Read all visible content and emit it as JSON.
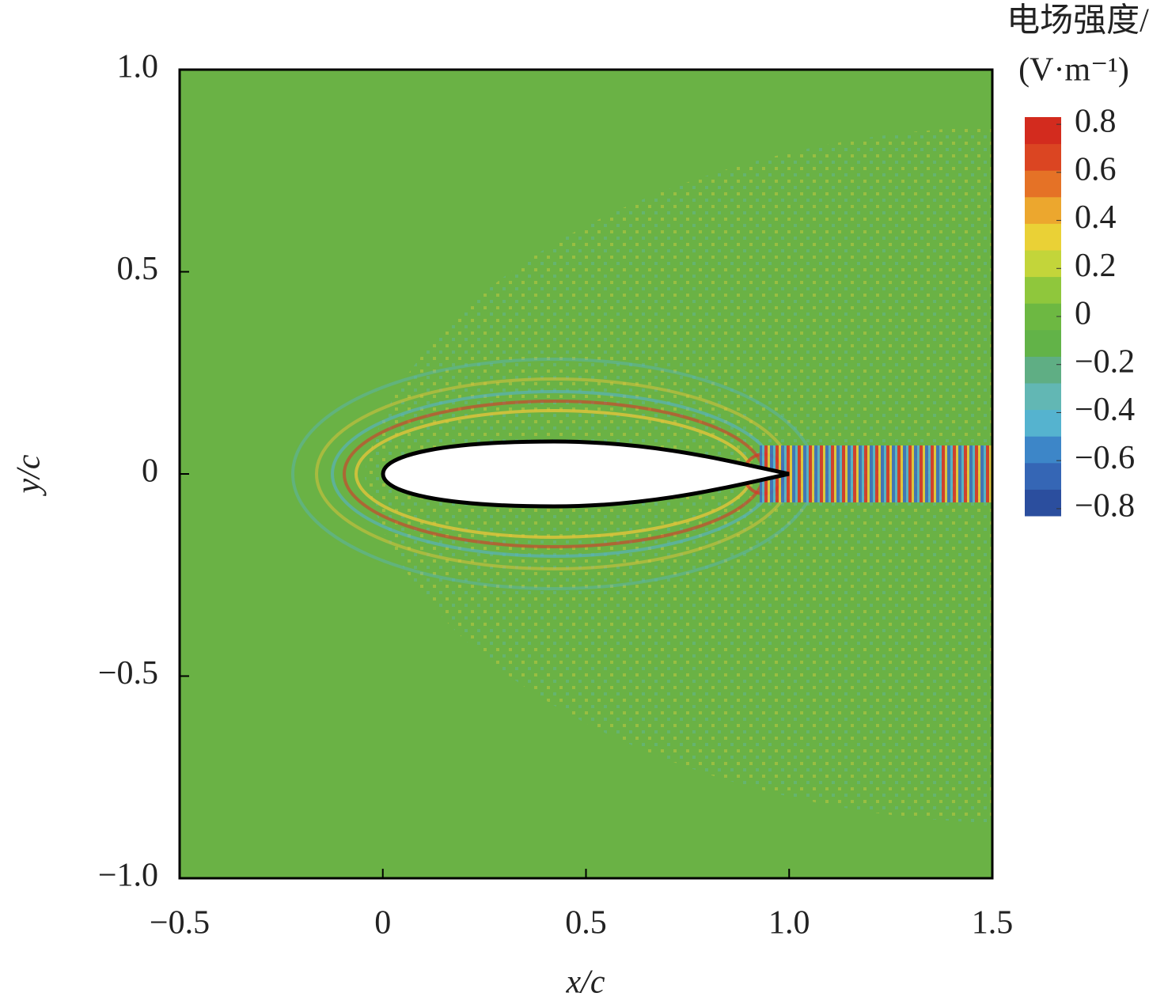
{
  "chart_data": {
    "type": "contour",
    "xlabel": "x/c",
    "ylabel": "y/c",
    "colorbar_title": [
      "电场强度/",
      "(V·m⁻¹)"
    ],
    "xlim": [
      -0.5,
      1.5
    ],
    "ylim": [
      -1,
      1
    ],
    "xticks": [
      {
        "value": -0.5,
        "label": "−0.5"
      },
      0,
      0.5,
      {
        "value": 1,
        "label": "1.0"
      },
      1.5
    ],
    "yticks": [
      {
        "value": -1,
        "label": "−1.0"
      },
      {
        "value": -0.5,
        "label": "−0.5"
      },
      0,
      0.5,
      {
        "value": 1,
        "label": "1.0"
      }
    ],
    "clim": [
      -0.83,
      0.83
    ],
    "cticks": [
      {
        "value": -0.8,
        "label": "−0.8"
      },
      {
        "value": -0.6,
        "label": "−0.6"
      },
      {
        "value": -0.4,
        "label": "−0.4"
      },
      {
        "value": -0.2,
        "label": "−0.2"
      },
      0,
      0.2,
      0.4,
      0.6,
      0.8
    ],
    "colorscale": [
      "#2b4e9e",
      "#3566b5",
      "#3d86c8",
      "#55b3cf",
      "#62b7b4",
      "#5fae84",
      "#62b348",
      "#6db842",
      "#8fc73c",
      "#c3d53a",
      "#ead136",
      "#eca72e",
      "#e57226",
      "#db4522",
      "#d32b1e"
    ],
    "background_color": "#6ab245"
  }
}
